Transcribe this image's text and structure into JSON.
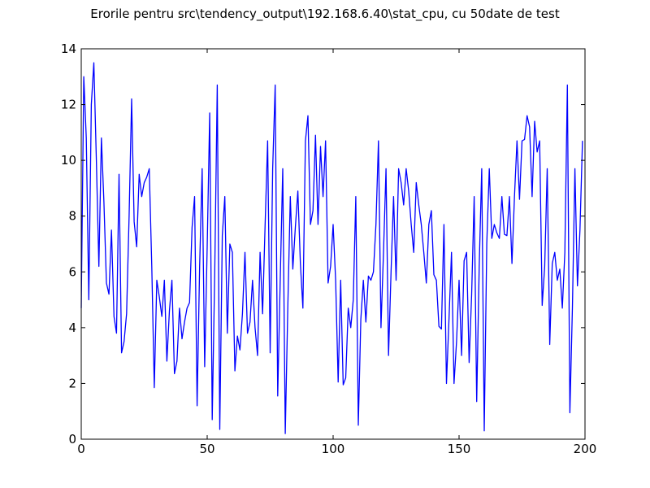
{
  "chart_data": {
    "type": "line",
    "title": "Erorile pentru src\\tendency_output\\192.168.6.40\\stat_cpu, cu 50date de test",
    "xlabel": "",
    "ylabel": "",
    "xlim": [
      0,
      200
    ],
    "ylim": [
      0,
      14
    ],
    "xticks": [
      0,
      50,
      100,
      150,
      200
    ],
    "yticks": [
      0,
      2,
      4,
      6,
      8,
      10,
      12,
      14
    ],
    "grid": false,
    "line_color": "#0000ff",
    "series": [
      {
        "x_start": 0,
        "x_step": 1,
        "values": [
          4.7,
          13.0,
          10.8,
          5.0,
          12.0,
          13.5,
          10.0,
          6.2,
          10.8,
          8.5,
          5.6,
          5.2,
          7.5,
          4.4,
          3.8,
          9.5,
          3.1,
          3.5,
          4.5,
          8.0,
          12.2,
          7.8,
          6.9,
          9.5,
          8.7,
          9.2,
          9.4,
          9.7,
          6.2,
          1.85,
          5.7,
          5.1,
          4.4,
          5.7,
          2.8,
          4.6,
          5.7,
          2.35,
          2.8,
          4.7,
          3.6,
          4.2,
          4.7,
          4.9,
          7.6,
          8.7,
          1.2,
          6.2,
          9.7,
          2.6,
          6.9,
          11.7,
          0.7,
          6.0,
          12.7,
          0.35,
          7.3,
          8.7,
          3.8,
          7.0,
          6.7,
          2.45,
          3.7,
          3.2,
          4.5,
          6.7,
          3.8,
          4.2,
          5.7,
          4.0,
          3.0,
          6.7,
          4.5,
          7.7,
          10.7,
          3.1,
          9.7,
          12.7,
          1.55,
          5.7,
          9.7,
          0.2,
          4.7,
          8.7,
          6.1,
          7.6,
          8.9,
          6.3,
          4.7,
          10.7,
          11.6,
          7.7,
          8.2,
          10.9,
          7.7,
          10.5,
          8.7,
          10.7,
          5.6,
          6.2,
          7.7,
          5.7,
          2.05,
          5.7,
          1.95,
          2.2,
          4.7,
          4.0,
          5.0,
          8.7,
          0.5,
          4.3,
          5.7,
          4.2,
          5.85,
          5.7,
          6.0,
          7.7,
          10.7,
          4.0,
          6.7,
          9.7,
          3.0,
          6.0,
          8.7,
          5.7,
          9.7,
          9.2,
          8.4,
          9.7,
          8.9,
          7.7,
          6.7,
          9.2,
          8.4,
          7.7,
          6.7,
          5.6,
          7.7,
          8.2,
          5.9,
          5.7,
          4.05,
          3.95,
          7.7,
          2.0,
          4.3,
          6.7,
          2.0,
          3.5,
          5.7,
          3.0,
          6.4,
          6.7,
          2.75,
          5.2,
          8.7,
          1.35,
          6.2,
          9.7,
          0.3,
          7.0,
          9.7,
          7.2,
          7.7,
          7.4,
          7.2,
          8.7,
          7.35,
          7.3,
          8.7,
          6.3,
          8.7,
          10.7,
          8.6,
          10.7,
          10.75,
          11.6,
          11.2,
          8.7,
          11.4,
          10.3,
          10.7,
          4.8,
          6.2,
          9.7,
          3.4,
          6.3,
          6.7,
          5.7,
          6.1,
          4.7,
          6.7,
          12.7,
          0.95,
          4.7,
          9.7,
          5.5,
          7.5,
          10.7
        ]
      }
    ]
  }
}
